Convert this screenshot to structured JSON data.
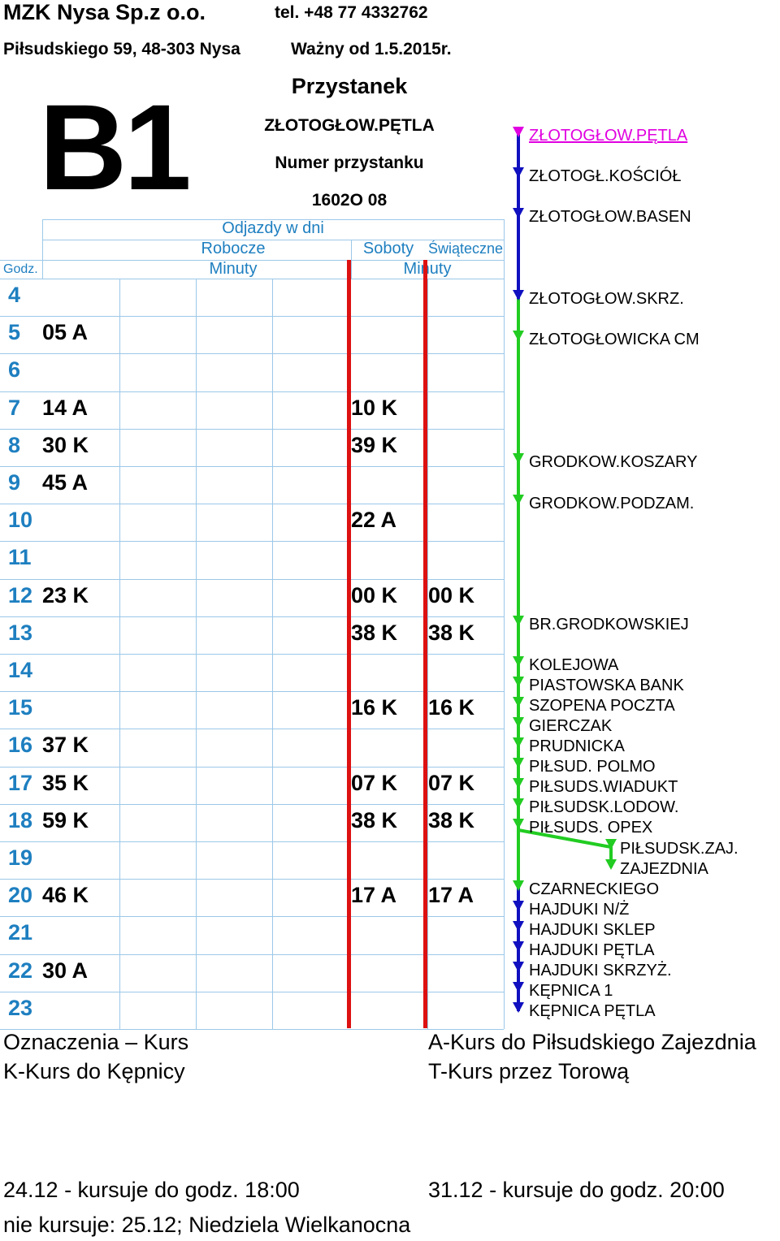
{
  "header": {
    "company": "MZK Nysa Sp.z o.o.",
    "phone": "tel. +48 77 4332762",
    "address": "Piłsudskiego 59, 48-303 Nysa",
    "valid_from": "Ważny od 1.5.2015r.",
    "line": "B1",
    "stop_heading": "Przystanek",
    "stop_name": "ZŁOTOGŁOW.PĘTLA",
    "stop_number_label": "Numer przystanku",
    "stop_number": "1602O 08"
  },
  "table": {
    "departures_label": "Odjazdy w dni",
    "col_weekday": "Robocze",
    "col_saturday": "Soboty",
    "col_holiday": "Świąteczne",
    "hour_label": "Godz.",
    "minutes_label_1": "Minuty",
    "minutes_label_2": "Minuty",
    "rows": [
      {
        "hour": "4",
        "weekday": "",
        "saturday": "",
        "holiday": ""
      },
      {
        "hour": "5",
        "weekday": "05 A",
        "saturday": "",
        "holiday": ""
      },
      {
        "hour": "6",
        "weekday": "",
        "saturday": "",
        "holiday": ""
      },
      {
        "hour": "7",
        "weekday": "14 A",
        "saturday": "10 K",
        "holiday": ""
      },
      {
        "hour": "8",
        "weekday": "30 K",
        "saturday": "39 K",
        "holiday": ""
      },
      {
        "hour": "9",
        "weekday": "45 A",
        "saturday": "",
        "holiday": ""
      },
      {
        "hour": "10",
        "weekday": "",
        "saturday": "22 A",
        "holiday": ""
      },
      {
        "hour": "11",
        "weekday": "",
        "saturday": "",
        "holiday": ""
      },
      {
        "hour": "12",
        "weekday": "23 K",
        "saturday": "00 K",
        "holiday": "00 K"
      },
      {
        "hour": "13",
        "weekday": "",
        "saturday": "38 K",
        "holiday": "38 K"
      },
      {
        "hour": "14",
        "weekday": "",
        "saturday": "",
        "holiday": ""
      },
      {
        "hour": "15",
        "weekday": "",
        "saturday": "16 K",
        "holiday": "16 K"
      },
      {
        "hour": "16",
        "weekday": "37 K",
        "saturday": "",
        "holiday": ""
      },
      {
        "hour": "17",
        "weekday": "35 K",
        "saturday": "07 K",
        "holiday": "07 K"
      },
      {
        "hour": "18",
        "weekday": "59 K",
        "saturday": "38 K",
        "holiday": "38 K"
      },
      {
        "hour": "19",
        "weekday": "",
        "saturday": "",
        "holiday": ""
      },
      {
        "hour": "20",
        "weekday": "46 K",
        "saturday": "17 A",
        "holiday": "17 A"
      },
      {
        "hour": "21",
        "weekday": "",
        "saturday": "",
        "holiday": ""
      },
      {
        "hour": "22",
        "weekday": "30 A",
        "saturday": "",
        "holiday": ""
      },
      {
        "hour": "23",
        "weekday": "",
        "saturday": "",
        "holiday": ""
      }
    ]
  },
  "route": {
    "stops": [
      {
        "name": "ZŁOTOGŁOW.PĘTLA",
        "color": "#e000e0"
      },
      {
        "name": "ZŁOTOGŁ.KOŚCIÓŁ",
        "color": "#1010c0"
      },
      {
        "name": "ZŁOTOGŁOW.BASEN",
        "color": "#1010c0"
      },
      {
        "name": "ZŁOTOGŁOW.SKRZ.",
        "color": "#1010c0"
      },
      {
        "name": "ZŁOTOGŁOWICKA CM",
        "color": "#22cc22"
      },
      {
        "name": "GRODKOW.KOSZARY",
        "color": "#22cc22"
      },
      {
        "name": "GRODKOW.PODZAM.",
        "color": "#22cc22"
      },
      {
        "name": "BR.GRODKOWSKIEJ",
        "color": "#22cc22"
      },
      {
        "name": "KOLEJOWA",
        "color": "#22cc22"
      },
      {
        "name": "PIASTOWSKA BANK",
        "color": "#22cc22"
      },
      {
        "name": "SZOPENA POCZTA",
        "color": "#22cc22"
      },
      {
        "name": "GIERCZAK",
        "color": "#22cc22"
      },
      {
        "name": "PRUDNICKA",
        "color": "#22cc22"
      },
      {
        "name": "PIŁSUD. POLMO",
        "color": "#22cc22"
      },
      {
        "name": "PIŁSUDS.WIADUKT",
        "color": "#22cc22"
      },
      {
        "name": "PIŁSUDSK.LODOW.",
        "color": "#22cc22"
      },
      {
        "name": "PIŁSUDS. OPEX",
        "color": "#22cc22"
      },
      {
        "name": "PIŁSUDSK.ZAJ.",
        "color": "#22cc22"
      },
      {
        "name": "ZAJEZDNIA",
        "color": "#22cc22"
      },
      {
        "name": "CZARNECKIEGO",
        "color": "#22cc22"
      },
      {
        "name": "HAJDUKI N/Ż",
        "color": "#1010c0"
      },
      {
        "name": "HAJDUKI SKLEP",
        "color": "#1010c0"
      },
      {
        "name": "HAJDUKI PĘTLA",
        "color": "#1010c0"
      },
      {
        "name": "HAJDUKI SKRZYŻ.",
        "color": "#1010c0"
      },
      {
        "name": "KĘPNICA 1",
        "color": "#1010c0"
      },
      {
        "name": "KĘPNICA PĘTLA",
        "color": "#1010c0"
      }
    ]
  },
  "legend": {
    "title": "Oznaczenia – Kurs",
    "k": "K-Kurs do Kępnicy",
    "a": "A-Kurs do Piłsudskiego Zajezdnia",
    "t": "T-Kurs przez Torową"
  },
  "notes": {
    "christmas_eve": "24.12 - kursuje do godz. 18:00",
    "new_years_eve": "31.12 - kursuje do godz. 20:00",
    "no_service": "nie kursuje: 25.12; Niedziela Wielkanocna"
  }
}
